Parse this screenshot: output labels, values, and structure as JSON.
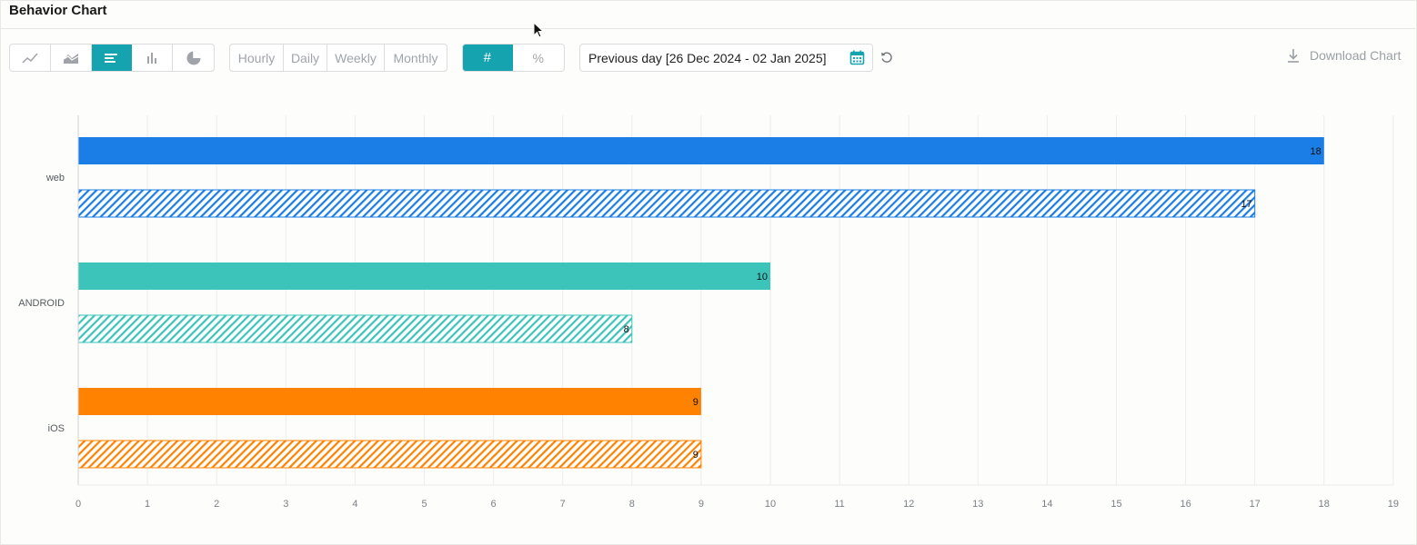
{
  "header": {
    "title": "Behavior Chart"
  },
  "toolbar": {
    "chart_types": [
      {
        "icon": "line-chart-icon",
        "active": false
      },
      {
        "icon": "area-chart-icon",
        "active": false
      },
      {
        "icon": "horizontal-bar-icon",
        "active": true
      },
      {
        "icon": "vertical-bar-icon",
        "active": false
      },
      {
        "icon": "pie-chart-icon",
        "active": false
      }
    ],
    "granularity": [
      "Hourly",
      "Daily",
      "Weekly",
      "Monthly"
    ],
    "mode": {
      "count": "#",
      "percent": "%",
      "active": "count"
    },
    "date_range": "Previous day [26 Dec 2024 - 02 Jan 2025]",
    "download_label": "Download Chart"
  },
  "colors": {
    "accent": "#15a3b0",
    "web": "#1a7ee6",
    "android": "#3cc4bb",
    "ios": "#ff8200"
  },
  "chart_data": {
    "type": "bar",
    "orientation": "horizontal",
    "categories": [
      "web",
      "ANDROID",
      "iOS"
    ],
    "series": [
      {
        "style": "solid",
        "values": [
          18,
          10,
          9
        ]
      },
      {
        "style": "hatched",
        "values": [
          17,
          8,
          9
        ]
      }
    ],
    "x_ticks": [
      "0",
      "1",
      "2",
      "3",
      "4",
      "5",
      "6",
      "7",
      "8",
      "9",
      "10",
      "11",
      "12",
      "13",
      "14",
      "15",
      "16",
      "17",
      "18",
      "19"
    ],
    "xlim": [
      0,
      19
    ],
    "grid": true,
    "data_labels": true
  }
}
